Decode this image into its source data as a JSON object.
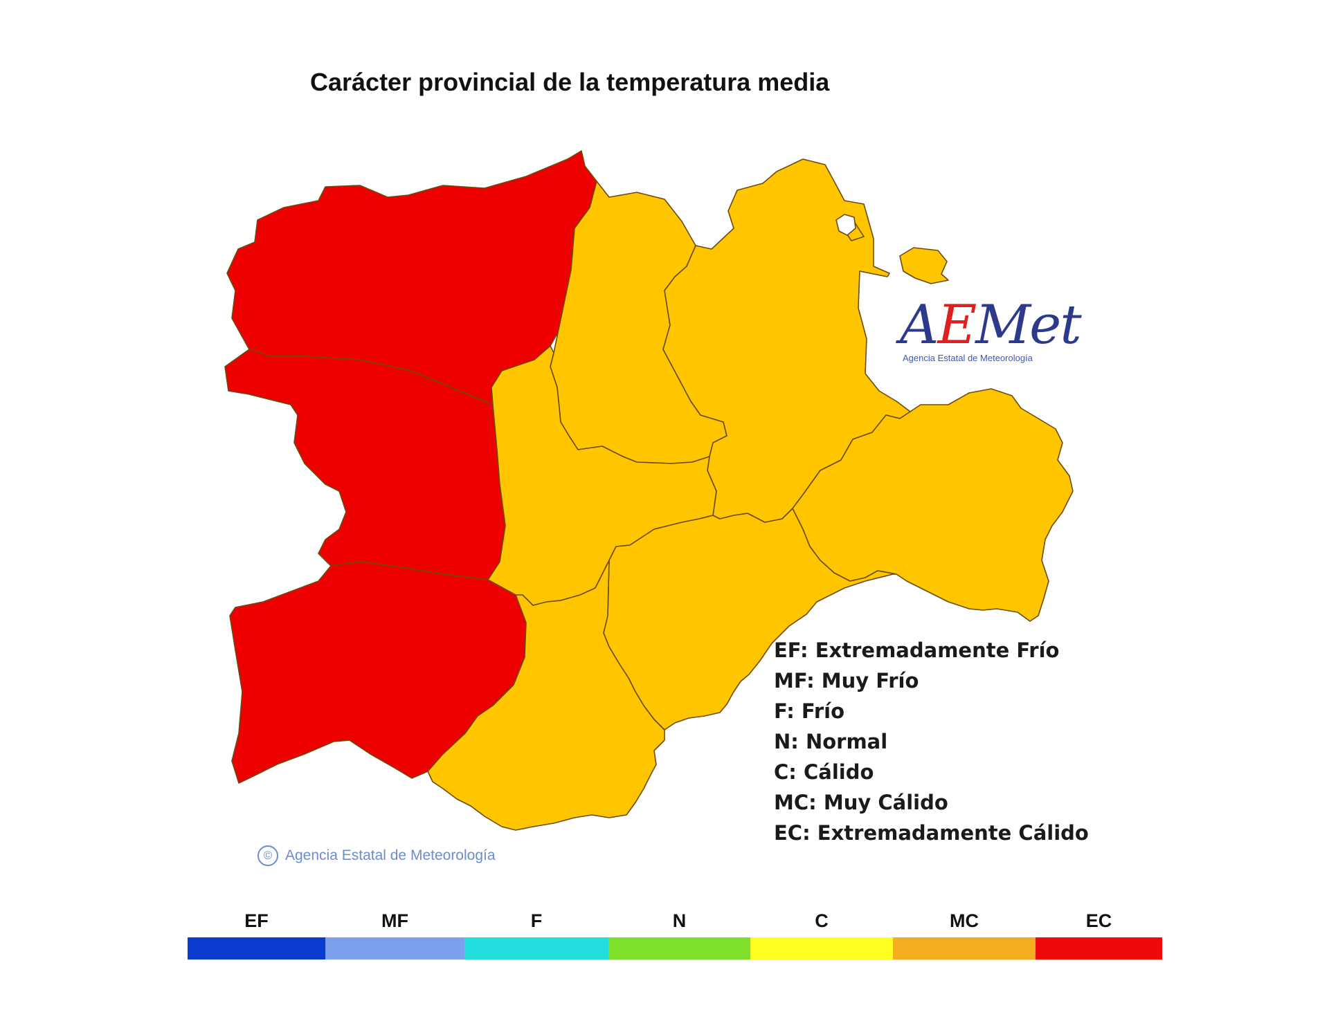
{
  "title": "Carácter provincial de la temperatura media",
  "colors": {
    "EC": "#ee0000",
    "C_map": "#ffc600",
    "border": "#6a4a10"
  },
  "provinces": [
    {
      "name": "León",
      "category": "EC"
    },
    {
      "name": "Zamora",
      "category": "EC"
    },
    {
      "name": "Salamanca",
      "category": "EC"
    },
    {
      "name": "Palencia",
      "category": "C"
    },
    {
      "name": "Burgos",
      "category": "C"
    },
    {
      "name": "Valladolid",
      "category": "C"
    },
    {
      "name": "Soria",
      "category": "C"
    },
    {
      "name": "Segovia",
      "category": "C"
    },
    {
      "name": "Ávila",
      "category": "C"
    }
  ],
  "logo": {
    "letter_a": "A",
    "letter_e": "E",
    "rest": "Met",
    "subtitle": "Agencia Estatal de Meteorología"
  },
  "legend": [
    "EF: Extremadamente Frío",
    "MF: Muy Frío",
    "F: Frío",
    "N: Normal",
    "C: Cálido",
    "MC: Muy Cálido",
    "EC: Extremadamente Cálido"
  ],
  "copyright": {
    "symbol": "©",
    "text": "Agencia Estatal de Meteorología"
  },
  "scale": [
    {
      "label": "EF",
      "color": "#0a3cd0"
    },
    {
      "label": "MF",
      "color": "#7aa0ee"
    },
    {
      "label": "F",
      "color": "#22dedc"
    },
    {
      "label": "N",
      "color": "#7ee02a"
    },
    {
      "label": "C",
      "color": "#ffff20"
    },
    {
      "label": "MC",
      "color": "#f5ad20"
    },
    {
      "label": "EC",
      "color": "#ee0a0a"
    }
  ]
}
